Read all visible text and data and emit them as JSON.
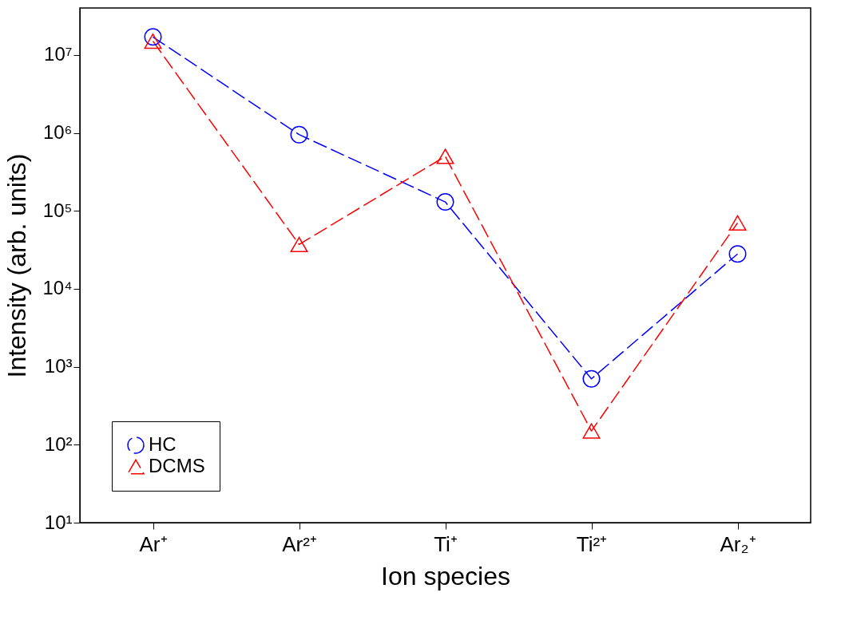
{
  "chart_data": {
    "type": "line",
    "xlabel": "Ion species",
    "ylabel": "Intensity (arb. units)",
    "categories": [
      "Ar⁺",
      "Ar²⁺",
      "Ti⁺",
      "Ti²⁺",
      "Ar₂⁺"
    ],
    "series": [
      {
        "name": "HC",
        "color": "#0000ff",
        "marker": "circle",
        "line_style": "dashed",
        "values": [
          17000000,
          950000,
          130000,
          700,
          28000
        ]
      },
      {
        "name": "DCMS",
        "color": "#ff0000",
        "marker": "triangle",
        "line_style": "dashed",
        "values": [
          15000000,
          37000,
          500000,
          150,
          70000
        ]
      }
    ],
    "log": "y",
    "ylim": [
      10,
      40000000
    ],
    "yticks": [
      {
        "value": 10,
        "label": "10¹"
      },
      {
        "value": 100,
        "label": "10²"
      },
      {
        "value": 1000,
        "label": "10³"
      },
      {
        "value": 10000,
        "label": "10⁴"
      },
      {
        "value": 100000,
        "label": "10⁵"
      },
      {
        "value": 1000000,
        "label": "10⁶"
      },
      {
        "value": 10000000,
        "label": "10⁷"
      }
    ],
    "grid": false,
    "legend": "bottom left"
  }
}
